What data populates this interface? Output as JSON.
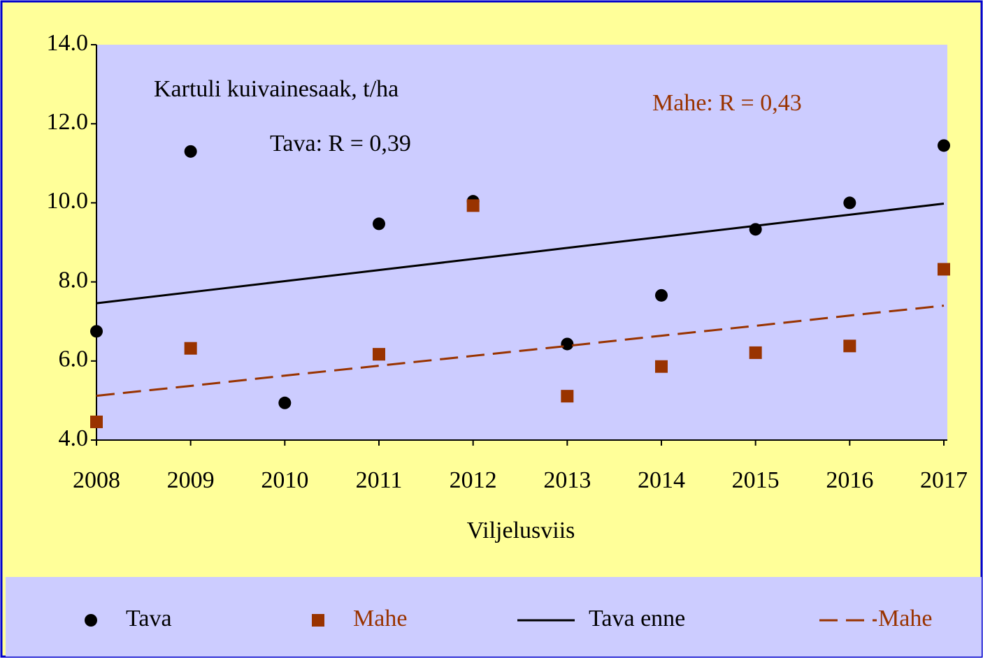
{
  "chart_data": {
    "type": "scatter",
    "annotations": [
      "Kartuli kuivainesaak, t/ha",
      "Tava: R = 0,39",
      "Mahe: R = 0,43"
    ],
    "xlabel": "Viljelusviis",
    "x": [
      2008,
      2009,
      2010,
      2011,
      2012,
      2013,
      2014,
      2015,
      2016,
      2017
    ],
    "series": [
      {
        "name": "Tava",
        "color": "#000000",
        "marker": "circle",
        "values": [
          6.75,
          11.3,
          4.94,
          9.47,
          10.04,
          6.43,
          7.66,
          9.33,
          10.0,
          11.45
        ]
      },
      {
        "name": "Mahe",
        "color": "#993300",
        "marker": "square",
        "values": [
          4.46,
          6.32,
          null,
          6.17,
          9.93,
          5.11,
          5.86,
          6.21,
          6.38,
          8.32
        ]
      },
      {
        "name": "Tava enne",
        "color": "#000000",
        "line": "solid",
        "values": [
          7.46,
          7.74,
          8.02,
          8.3,
          8.58,
          8.86,
          9.14,
          9.42,
          9.7,
          9.98
        ]
      },
      {
        "name": "Mahe",
        "color": "#993300",
        "line": "dashed",
        "values": [
          5.12,
          5.37,
          5.63,
          5.88,
          6.13,
          6.38,
          6.64,
          6.89,
          7.15,
          7.4
        ]
      }
    ],
    "xlim": [
      2008,
      2017
    ],
    "xticks": [
      2008,
      2009,
      2010,
      2011,
      2012,
      2013,
      2014,
      2015,
      2016,
      2017
    ],
    "ylim": [
      4,
      14
    ],
    "yticks": [
      {
        "value": 4,
        "label": "4.0"
      },
      {
        "value": 6,
        "label": "6.0"
      },
      {
        "value": 8,
        "label": "8.0"
      },
      {
        "value": 10,
        "label": "10.0"
      },
      {
        "value": 12,
        "label": "12.0"
      },
      {
        "value": 14,
        "label": "14.0"
      }
    ]
  }
}
